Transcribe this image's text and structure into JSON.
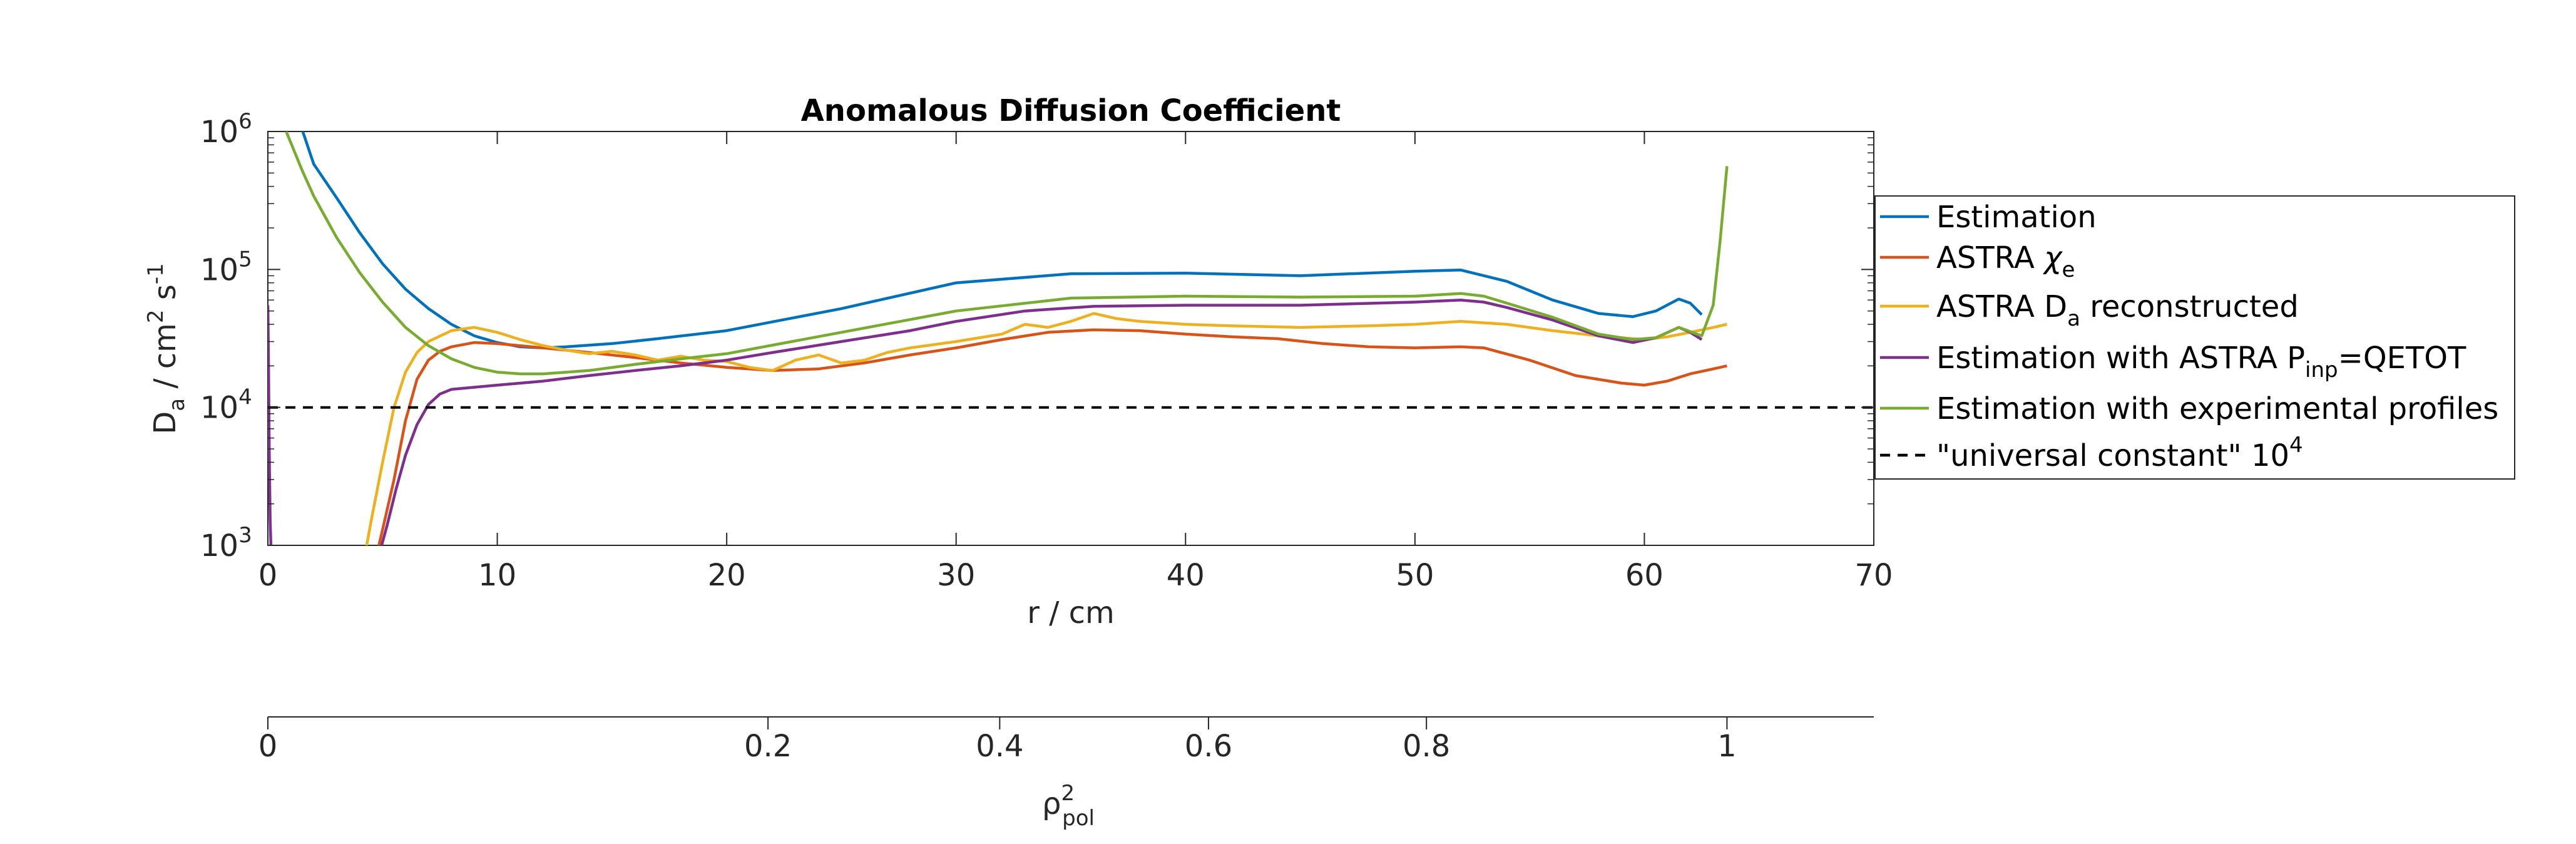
{
  "chart_data": {
    "type": "line",
    "title": "Anomalous Diffusion Coefficient",
    "xlabel": "r / cm",
    "xlim": [
      0,
      70
    ],
    "xticks": [
      "0",
      "10",
      "20",
      "30",
      "40",
      "50",
      "60",
      "70"
    ],
    "ylabel": {
      "base": "D",
      "sub": "a",
      "mid": " / cm",
      "sup1": "2",
      "tail": " s",
      "sup2": "-1"
    },
    "yscale": "log",
    "ylim": [
      1000,
      1000000
    ],
    "yticks": [
      {
        "value": 1000,
        "base": "10",
        "exp": "3"
      },
      {
        "value": 10000,
        "base": "10",
        "exp": "4"
      },
      {
        "value": 100000,
        "base": "10",
        "exp": "5"
      },
      {
        "value": 1000000,
        "base": "10",
        "exp": "6"
      }
    ],
    "grid": false,
    "legend_position": "right",
    "secondary_axis": {
      "label_base": "ρ",
      "label_sup": "2",
      "label_sub": "pol",
      "ticks": [
        {
          "label": "0",
          "r": 0
        },
        {
          "label": "0.2",
          "r": 21.8
        },
        {
          "label": "0.4",
          "r": 31.9
        },
        {
          "label": "0.6",
          "r": 41.0
        },
        {
          "label": "0.8",
          "r": 50.5
        },
        {
          "label": "1",
          "r": 63.6
        }
      ]
    },
    "series": [
      {
        "name": "Estimation",
        "color": "#0072BD",
        "legend": {
          "base": "Estimation"
        },
        "x": [
          0.5,
          2,
          3,
          4,
          5,
          6,
          7,
          8,
          9,
          10,
          11,
          12,
          13,
          15,
          17,
          20,
          25,
          30,
          35,
          40,
          45,
          50,
          52,
          54,
          56,
          58,
          59.5,
          60.5,
          61.5,
          62,
          62.5
        ],
        "y": [
          3200000,
          580000,
          330000,
          185000,
          110000,
          72000,
          52000,
          40000,
          33000,
          29500,
          27500,
          27000,
          27500,
          29000,
          31500,
          36000,
          52000,
          80000,
          93000,
          94000,
          90000,
          97000,
          99000,
          82000,
          60000,
          48000,
          45500,
          50000,
          61000,
          57000,
          47000
        ]
      },
      {
        "name": "ASTRA χe",
        "color": "#D95319",
        "legend": {
          "base": "ASTRA ",
          "greek": "χ",
          "sub": "e"
        },
        "x": [
          4.7,
          5,
          5.5,
          6,
          6.5,
          7,
          7.5,
          8,
          9,
          10,
          12,
          14,
          16,
          18,
          20,
          22,
          24,
          26,
          28,
          30,
          32,
          34,
          36,
          38,
          40,
          42,
          44,
          46,
          48,
          50,
          52,
          53,
          55,
          57,
          59,
          60,
          61,
          62,
          63,
          63.6
        ],
        "y": [
          800,
          1300,
          3000,
          8000,
          16000,
          22000,
          25500,
          27500,
          29500,
          29000,
          27000,
          25000,
          23000,
          21000,
          19500,
          18500,
          19000,
          21000,
          24000,
          27000,
          31000,
          35000,
          36500,
          36000,
          34000,
          32500,
          31500,
          29000,
          27500,
          27000,
          27500,
          27000,
          22000,
          17000,
          15000,
          14500,
          15500,
          17500,
          19000,
          20000
        ]
      },
      {
        "name": "ASTRA Da reconstructed",
        "color": "#EDB120",
        "legend": {
          "base": "ASTRA D",
          "sub": "a",
          "tail": " reconstructed"
        },
        "x": [
          4.2,
          4.5,
          5,
          5.5,
          6,
          6.5,
          7,
          8,
          9,
          10,
          11,
          12,
          13,
          14,
          15,
          16,
          17,
          18,
          19,
          20,
          21,
          22,
          23,
          24,
          25,
          26,
          27,
          28,
          30,
          32,
          33,
          34,
          35,
          36,
          37,
          38,
          40,
          42,
          45,
          48,
          50,
          52,
          54,
          56,
          58,
          60,
          61,
          62,
          63,
          63.6
        ],
        "y": [
          800,
          1500,
          4000,
          10000,
          18000,
          25000,
          30000,
          36000,
          38000,
          35000,
          31000,
          28000,
          26000,
          24500,
          25500,
          24000,
          22000,
          23500,
          22000,
          21500,
          19500,
          18500,
          22000,
          24000,
          21000,
          22000,
          25000,
          27000,
          30000,
          34000,
          40000,
          38000,
          42000,
          48000,
          44000,
          42000,
          40000,
          39000,
          38000,
          39000,
          40000,
          42000,
          40000,
          36000,
          33000,
          31000,
          32500,
          35000,
          38000,
          40000
        ]
      },
      {
        "name": "Estimation with ASTRA Pinp=QETOT",
        "color": "#7E2F8E",
        "legend": {
          "base": "Estimation with ASTRA P",
          "sub": "inp",
          "tail": "=QETOT"
        },
        "x": [
          0,
          0.03,
          0.06,
          0.1,
          0.15,
          4.8,
          5.2,
          5.6,
          6,
          6.5,
          7,
          7.5,
          8,
          9,
          10,
          12,
          14,
          16,
          18,
          20,
          22,
          25,
          28,
          30,
          33,
          36,
          40,
          45,
          50,
          52,
          53,
          54,
          56,
          58,
          59.5,
          60.5,
          61.5,
          62,
          62.5
        ],
        "y": [
          55000,
          20000,
          5000,
          1500,
          800,
          800,
          1400,
          2600,
          4500,
          7500,
          10500,
          12500,
          13500,
          14000,
          14500,
          15500,
          17000,
          18500,
          20000,
          22000,
          25000,
          30000,
          36000,
          42000,
          50000,
          54000,
          55000,
          55000,
          58000,
          60000,
          58000,
          53000,
          43000,
          33000,
          29500,
          32000,
          38000,
          35000,
          31000
        ]
      },
      {
        "name": "Estimation with experimental profiles",
        "color": "#77AC30",
        "legend": {
          "base": "Estimation with experimental profiles"
        },
        "x": [
          0.8,
          1.5,
          2,
          3,
          4,
          5,
          6,
          7,
          8,
          9,
          10,
          11,
          12,
          14,
          16,
          18,
          20,
          25,
          30,
          35,
          40,
          45,
          50,
          52,
          53,
          54,
          56,
          58,
          59.5,
          60.5,
          61.5,
          62.5,
          63,
          63.3,
          63.6
        ],
        "y": [
          1000000,
          520000,
          340000,
          170000,
          95000,
          58000,
          38000,
          28000,
          22500,
          19500,
          18000,
          17500,
          17500,
          18500,
          20500,
          22500,
          24500,
          35000,
          50000,
          62000,
          64000,
          63000,
          64000,
          67000,
          64000,
          57000,
          45000,
          34000,
          31000,
          32000,
          38000,
          33000,
          55000,
          160000,
          560000
        ]
      },
      {
        "name": "\"universal constant\" 10^4",
        "color": "#000000",
        "dashed": true,
        "legend": {
          "base": "\"universal constant\" 10",
          "sup": "4"
        },
        "x": [
          0,
          70
        ],
        "y": [
          10000,
          10000
        ]
      }
    ]
  }
}
